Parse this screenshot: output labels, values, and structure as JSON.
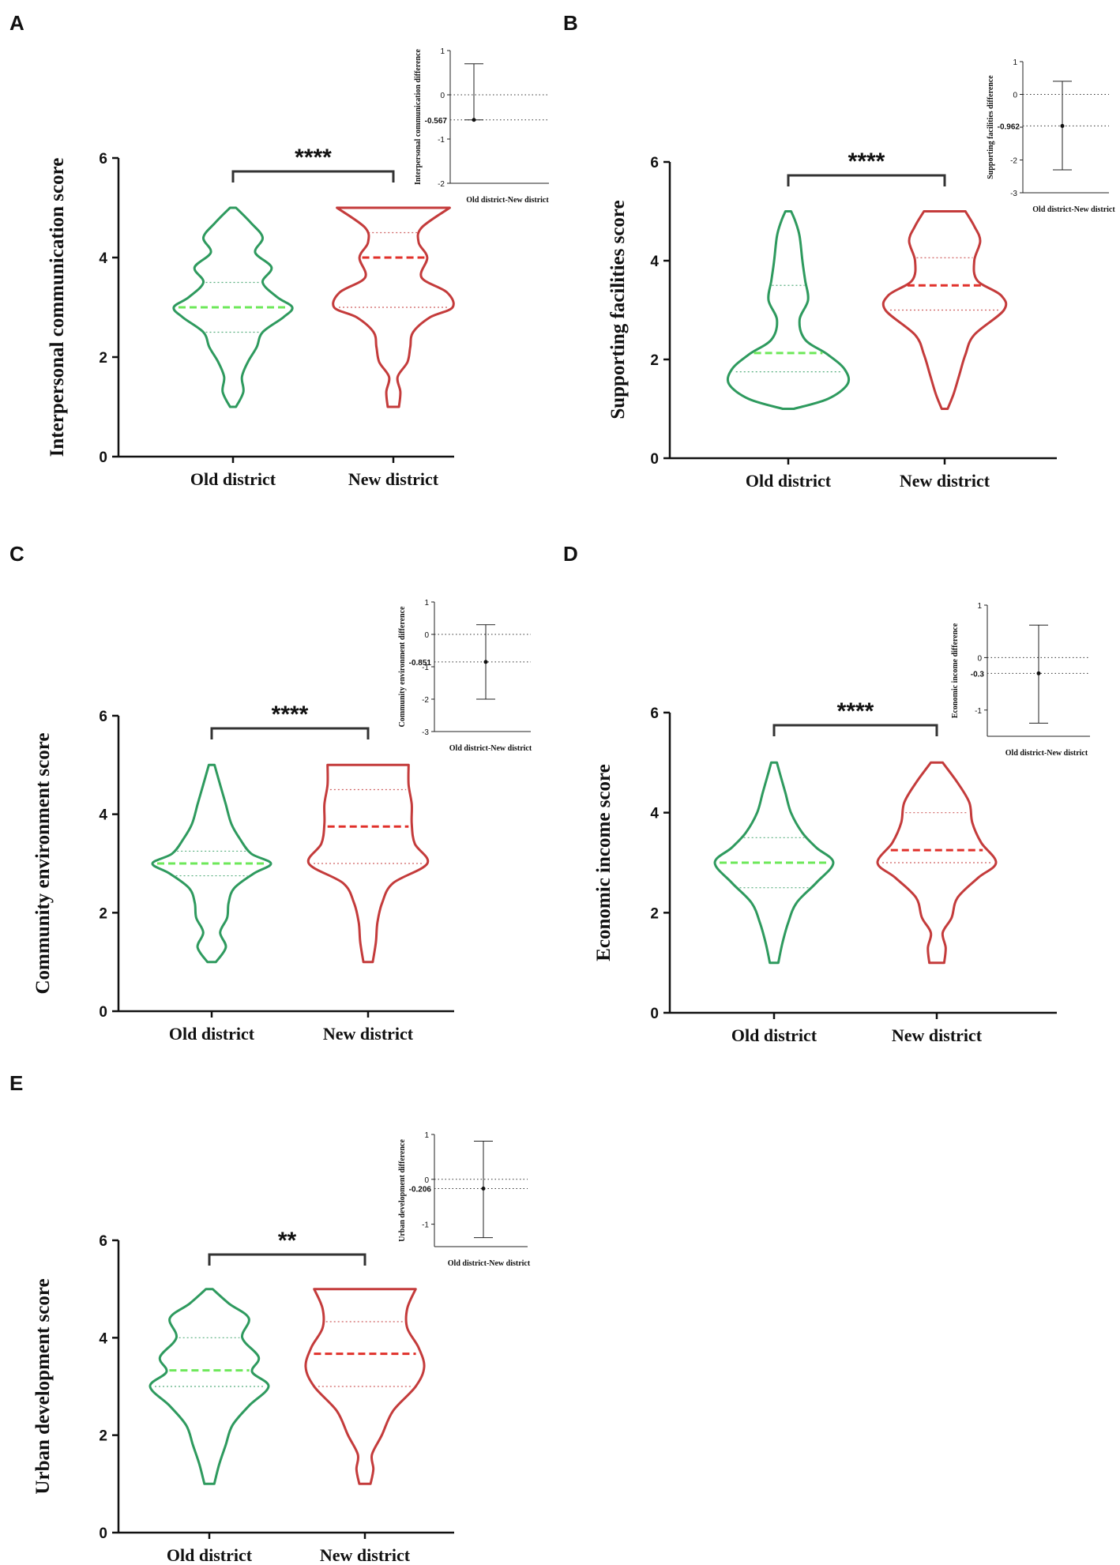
{
  "figure": {
    "colors": {
      "old": "#2e9a5e",
      "old_median": "#6ee85a",
      "new": "#c43b3b",
      "new_median": "#e0302a",
      "axis": "#111111"
    }
  },
  "chart_data": [
    {
      "panel": "A",
      "type": "violin",
      "ylabel": "Interpersonal communication score",
      "categories": [
        "Old district",
        "New district"
      ],
      "ylim": [
        0,
        6
      ],
      "yticks": [
        "0",
        "2",
        "4",
        "6"
      ],
      "significance": "****",
      "groups": [
        {
          "name": "Old district",
          "min": 1,
          "max": 5,
          "median": 3.0,
          "q1": 2.5,
          "q3": 3.5,
          "density": [
            [
              1.0,
              0.02
            ],
            [
              1.3,
              0.07
            ],
            [
              1.6,
              0.06
            ],
            [
              1.9,
              0.1
            ],
            [
              2.2,
              0.16
            ],
            [
              2.5,
              0.2
            ],
            [
              2.8,
              0.34
            ],
            [
              3.0,
              0.4
            ],
            [
              3.2,
              0.3
            ],
            [
              3.5,
              0.2
            ],
            [
              3.8,
              0.26
            ],
            [
              4.1,
              0.15
            ],
            [
              4.4,
              0.2
            ],
            [
              4.7,
              0.12
            ],
            [
              5.0,
              0.02
            ]
          ]
        },
        {
          "name": "New district",
          "min": 1,
          "max": 5,
          "median": 4.0,
          "q1": 3.0,
          "q3": 4.5,
          "density": [
            [
              1.0,
              0.04
            ],
            [
              1.3,
              0.05
            ],
            [
              1.6,
              0.03
            ],
            [
              1.9,
              0.1
            ],
            [
              2.2,
              0.12
            ],
            [
              2.5,
              0.14
            ],
            [
              2.8,
              0.26
            ],
            [
              3.0,
              0.42
            ],
            [
              3.3,
              0.38
            ],
            [
              3.6,
              0.2
            ],
            [
              4.0,
              0.24
            ],
            [
              4.3,
              0.18
            ],
            [
              4.6,
              0.2
            ],
            [
              5.0,
              0.4
            ]
          ]
        }
      ],
      "inset": {
        "ylabel": "Interpersonal communication difference",
        "xlabel": "Old district-New district",
        "ylim": [
          -2,
          1
        ],
        "yticks": [
          "-2",
          "-1",
          "0",
          "1"
        ],
        "estimate": -0.567,
        "estimate_label": "-0.567",
        "ci": [
          -0.567,
          0.7
        ]
      }
    },
    {
      "panel": "B",
      "type": "violin",
      "ylabel": "Supporting facilities score",
      "categories": [
        "Old district",
        "New district"
      ],
      "ylim": [
        0,
        6
      ],
      "yticks": [
        "0",
        "2",
        "4",
        "6"
      ],
      "significance": "****",
      "groups": [
        {
          "name": "Old district",
          "min": 1,
          "max": 5,
          "median": 2.13,
          "q1": 1.75,
          "q3": 3.5,
          "density": [
            [
              1.0,
              0.04
            ],
            [
              1.2,
              0.28
            ],
            [
              1.5,
              0.42
            ],
            [
              1.8,
              0.4
            ],
            [
              2.1,
              0.28
            ],
            [
              2.4,
              0.12
            ],
            [
              2.8,
              0.08
            ],
            [
              3.2,
              0.14
            ],
            [
              3.6,
              0.12
            ],
            [
              4.0,
              0.1
            ],
            [
              4.5,
              0.08
            ],
            [
              4.8,
              0.05
            ],
            [
              5.0,
              0.02
            ]
          ]
        },
        {
          "name": "New district",
          "min": 1,
          "max": 5,
          "median": 3.5,
          "q1": 3.0,
          "q3": 4.06,
          "density": [
            [
              1.0,
              0.02
            ],
            [
              1.3,
              0.06
            ],
            [
              1.7,
              0.1
            ],
            [
              2.1,
              0.14
            ],
            [
              2.5,
              0.2
            ],
            [
              3.0,
              0.4
            ],
            [
              3.3,
              0.38
            ],
            [
              3.6,
              0.22
            ],
            [
              4.0,
              0.2
            ],
            [
              4.4,
              0.24
            ],
            [
              4.7,
              0.2
            ],
            [
              5.0,
              0.14
            ]
          ]
        }
      ],
      "inset": {
        "ylabel": "Supporting facilities difference",
        "xlabel": "Old district-New district",
        "ylim": [
          -3,
          1
        ],
        "yticks": [
          "-3",
          "-2",
          "-1",
          "0",
          "1"
        ],
        "estimate": -0.962,
        "estimate_label": "-0.962",
        "ci": [
          -2.3,
          0.4
        ]
      }
    },
    {
      "panel": "C",
      "type": "violin",
      "ylabel": "Community environment score",
      "categories": [
        "Old district",
        "New district"
      ],
      "ylim": [
        0,
        6
      ],
      "yticks": [
        "0",
        "2",
        "4",
        "6"
      ],
      "significance": "****",
      "groups": [
        {
          "name": "Old district",
          "min": 1,
          "max": 5,
          "median": 3.0,
          "q1": 2.75,
          "q3": 3.25,
          "density": [
            [
              1.0,
              0.03
            ],
            [
              1.3,
              0.1
            ],
            [
              1.6,
              0.06
            ],
            [
              1.9,
              0.11
            ],
            [
              2.2,
              0.12
            ],
            [
              2.5,
              0.16
            ],
            [
              2.8,
              0.3
            ],
            [
              3.0,
              0.42
            ],
            [
              3.2,
              0.28
            ],
            [
              3.5,
              0.2
            ],
            [
              3.8,
              0.14
            ],
            [
              4.2,
              0.1
            ],
            [
              4.6,
              0.06
            ],
            [
              5.0,
              0.02
            ]
          ]
        },
        {
          "name": "New district",
          "min": 1,
          "max": 5,
          "median": 3.75,
          "q1": 3.0,
          "q3": 4.5,
          "density": [
            [
              1.0,
              0.03
            ],
            [
              1.4,
              0.05
            ],
            [
              1.8,
              0.06
            ],
            [
              2.2,
              0.09
            ],
            [
              2.6,
              0.16
            ],
            [
              3.0,
              0.38
            ],
            [
              3.4,
              0.3
            ],
            [
              3.8,
              0.28
            ],
            [
              4.2,
              0.28
            ],
            [
              4.6,
              0.26
            ],
            [
              5.0,
              0.26
            ]
          ]
        }
      ],
      "inset": {
        "ylabel": "Community environment difference",
        "xlabel": "Old district-New district",
        "ylim": [
          -3,
          1
        ],
        "yticks": [
          "-3",
          "-2",
          "-1",
          "0",
          "1"
        ],
        "estimate": -0.851,
        "estimate_label": "-0.851",
        "ci": [
          -2.0,
          0.3
        ]
      }
    },
    {
      "panel": "D",
      "type": "violin",
      "ylabel": "Economic income score",
      "categories": [
        "Old district",
        "New district"
      ],
      "ylim": [
        0,
        6
      ],
      "yticks": [
        "0",
        "2",
        "4",
        "6"
      ],
      "significance": "****",
      "groups": [
        {
          "name": "Old district",
          "min": 1,
          "max": 5,
          "median": 3.0,
          "q1": 2.5,
          "q3": 3.5,
          "density": [
            [
              1.0,
              0.03
            ],
            [
              1.4,
              0.06
            ],
            [
              1.8,
              0.1
            ],
            [
              2.2,
              0.16
            ],
            [
              2.6,
              0.3
            ],
            [
              3.0,
              0.42
            ],
            [
              3.3,
              0.3
            ],
            [
              3.6,
              0.2
            ],
            [
              4.0,
              0.12
            ],
            [
              4.4,
              0.08
            ],
            [
              4.8,
              0.04
            ],
            [
              5.0,
              0.02
            ]
          ]
        },
        {
          "name": "New district",
          "min": 1,
          "max": 5,
          "median": 3.25,
          "q1": 3.0,
          "q3": 4.0,
          "density": [
            [
              1.0,
              0.05
            ],
            [
              1.3,
              0.06
            ],
            [
              1.6,
              0.04
            ],
            [
              1.9,
              0.1
            ],
            [
              2.3,
              0.14
            ],
            [
              2.7,
              0.28
            ],
            [
              3.0,
              0.4
            ],
            [
              3.4,
              0.3
            ],
            [
              3.8,
              0.24
            ],
            [
              4.2,
              0.22
            ],
            [
              4.6,
              0.14
            ],
            [
              5.0,
              0.04
            ]
          ]
        }
      ],
      "inset": {
        "ylabel": "Economic income difference",
        "xlabel": "Old district-New district",
        "ylim": [
          -1.5,
          1
        ],
        "yticks": [
          "-1",
          "0",
          "1"
        ],
        "estimate": -0.3,
        "estimate_label": "-0.3",
        "ci": [
          -1.25,
          0.62
        ]
      }
    },
    {
      "panel": "E",
      "type": "violin",
      "ylabel": "Urban development score",
      "categories": [
        "Old district",
        "New district"
      ],
      "ylim": [
        0,
        6
      ],
      "yticks": [
        "0",
        "2",
        "4",
        "6"
      ],
      "significance": "**",
      "groups": [
        {
          "name": "Old district",
          "min": 1,
          "max": 5,
          "median": 3.33,
          "q1": 3.0,
          "q3": 4.0,
          "density": [
            [
              1.0,
              0.03
            ],
            [
              1.4,
              0.06
            ],
            [
              1.8,
              0.1
            ],
            [
              2.2,
              0.14
            ],
            [
              2.6,
              0.24
            ],
            [
              3.0,
              0.36
            ],
            [
              3.3,
              0.26
            ],
            [
              3.6,
              0.3
            ],
            [
              4.0,
              0.2
            ],
            [
              4.4,
              0.24
            ],
            [
              4.7,
              0.12
            ],
            [
              5.0,
              0.02
            ]
          ]
        },
        {
          "name": "New district",
          "min": 1,
          "max": 5,
          "median": 3.67,
          "q1": 3.0,
          "q3": 4.33,
          "density": [
            [
              1.0,
              0.04
            ],
            [
              1.3,
              0.06
            ],
            [
              1.6,
              0.05
            ],
            [
              2.0,
              0.12
            ],
            [
              2.5,
              0.2
            ],
            [
              3.0,
              0.36
            ],
            [
              3.4,
              0.42
            ],
            [
              3.8,
              0.38
            ],
            [
              4.2,
              0.3
            ],
            [
              4.6,
              0.3
            ],
            [
              5.0,
              0.36
            ]
          ]
        }
      ],
      "inset": {
        "ylabel": "Urban development difference",
        "xlabel": "Old district-New district",
        "ylim": [
          -1.5,
          1
        ],
        "yticks": [
          "-1",
          "0",
          "1"
        ],
        "estimate": -0.206,
        "estimate_label": "-0.206",
        "ci": [
          -1.3,
          0.85
        ]
      }
    }
  ]
}
